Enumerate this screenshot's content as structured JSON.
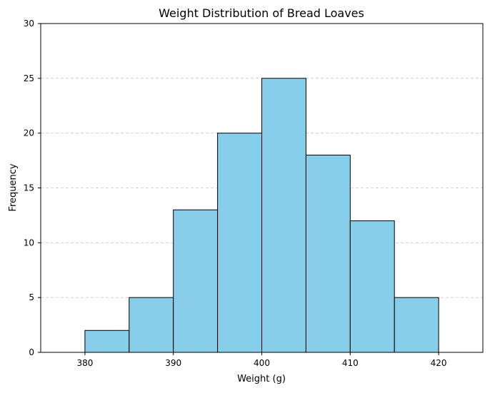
{
  "chart_data": {
    "type": "bar",
    "title": "Weight Distribution of Bread Loaves",
    "xlabel": "Weight (g)",
    "ylabel": "Frequency",
    "bin_edges": [
      380,
      385,
      390,
      395,
      400,
      405,
      410,
      415,
      420
    ],
    "values": [
      2,
      5,
      13,
      20,
      25,
      18,
      12,
      5
    ],
    "xlim": [
      375,
      425
    ],
    "ylim": [
      0,
      30
    ],
    "xticks": [
      380,
      390,
      400,
      410,
      420
    ],
    "yticks": [
      0,
      5,
      10,
      15,
      20,
      25,
      30
    ],
    "grid": "horizontal dashed",
    "bar_color": "#87CEEB",
    "edge_color": "#000000"
  }
}
